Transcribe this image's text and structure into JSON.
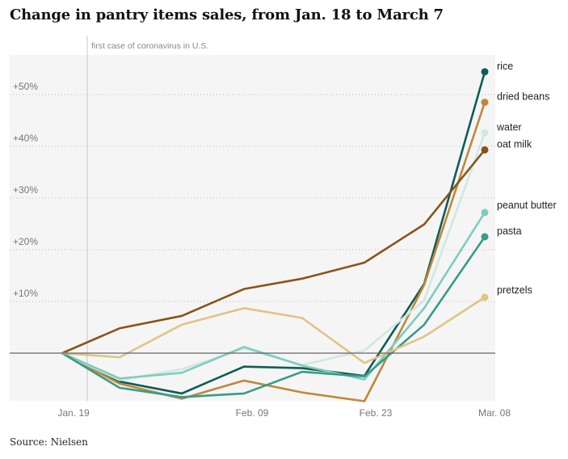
{
  "title": "Change in pantry items sales, from Jan. 18 to March 7",
  "source": "Source: Nielsen",
  "chart_data": {
    "type": "line",
    "title": "Change in pantry items sales, from Jan. 18 to March 7",
    "xlabel": "",
    "ylabel": "",
    "x_ticks": [
      "Jan. 19",
      "Feb. 09",
      "Feb. 23",
      "Mar. 08"
    ],
    "y_ticks": [
      "+10%",
      "+20%",
      "+30%",
      "+40%",
      "+50%"
    ],
    "ylim": [
      -9,
      57
    ],
    "grid": true,
    "annotation": "first case of coronavirus in U.S.",
    "x": [
      0,
      1,
      2,
      3,
      4,
      5,
      6,
      7,
      8
    ],
    "series": [
      {
        "name": "rice",
        "color": "#0b5e55",
        "values": [
          0,
          -5.5,
          -7.8,
          -2.6,
          -2.9,
          -4.4,
          13.4,
          54.4,
          null
        ]
      },
      {
        "name": "dried beans",
        "color": "#c08838",
        "values": [
          0,
          -5.9,
          -8.8,
          -5.3,
          -7.6,
          -9.3,
          13.2,
          48.5,
          null
        ]
      },
      {
        "name": "water",
        "color": "#cfe9e1",
        "values": [
          0,
          -5.2,
          -3.1,
          0.9,
          -2.3,
          0.5,
          10.2,
          42.6,
          null
        ]
      },
      {
        "name": "oat milk",
        "color": "#8a5418",
        "values": [
          0,
          4.8,
          7.2,
          12.4,
          14.4,
          17.5,
          24.9,
          39.3,
          null
        ]
      },
      {
        "name": "peanut butter",
        "color": "#7ccdbf",
        "values": [
          0,
          -4.9,
          -3.8,
          1.2,
          -2.4,
          -5.1,
          8.7,
          27.2,
          null
        ]
      },
      {
        "name": "pasta",
        "color": "#389a8a",
        "values": [
          0,
          -6.7,
          -8.5,
          -7.8,
          -3.6,
          -4.5,
          5.5,
          22.5,
          null
        ]
      },
      {
        "name": "pretzels",
        "color": "#e0c485",
        "values": [
          0,
          -0.8,
          5.5,
          8.7,
          6.8,
          -1.9,
          3.2,
          10.8,
          null
        ]
      }
    ]
  }
}
